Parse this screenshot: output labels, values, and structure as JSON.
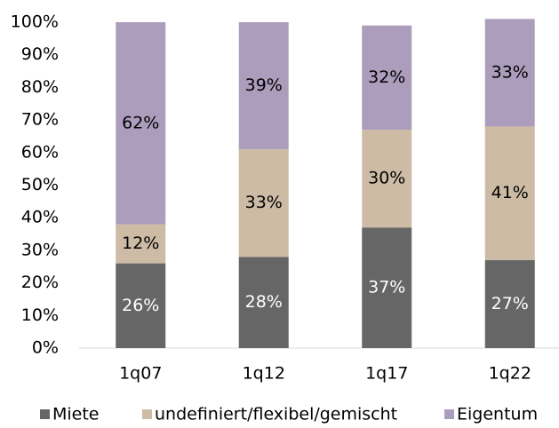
{
  "chart_data": {
    "type": "stacked-bar",
    "categories": [
      "1q07",
      "1q12",
      "1q17",
      "1q22"
    ],
    "series": [
      {
        "name": "Miete",
        "color": "#666666",
        "label_color": "#ffffff",
        "values": [
          26,
          28,
          37,
          27
        ],
        "value_labels": [
          "26%",
          "28%",
          "37%",
          "27%"
        ]
      },
      {
        "name": "undefiniert/flexibel/gemischt",
        "color": "#cdbba6",
        "label_color": "#000000",
        "values": [
          12,
          33,
          30,
          41
        ],
        "value_labels": [
          "12%",
          "33%",
          "30%",
          "41%"
        ]
      },
      {
        "name": "Eigentum",
        "color": "#ad9dbd",
        "label_color": "#000000",
        "values": [
          62,
          39,
          32,
          33
        ],
        "value_labels": [
          "62%",
          "39%",
          "32%",
          "33%"
        ]
      }
    ],
    "ylim": [
      0,
      100
    ],
    "yticks": [
      {
        "value": 0,
        "label": "0%"
      },
      {
        "value": 10,
        "label": "10%"
      },
      {
        "value": 20,
        "label": "20%"
      },
      {
        "value": 30,
        "label": "30%"
      },
      {
        "value": 40,
        "label": "40%"
      },
      {
        "value": 50,
        "label": "50%"
      },
      {
        "value": 60,
        "label": "60%"
      },
      {
        "value": 70,
        "label": "70%"
      },
      {
        "value": 80,
        "label": "80%"
      },
      {
        "value": 90,
        "label": "90%"
      },
      {
        "value": 100,
        "label": "100%"
      }
    ],
    "legend": "bottom"
  }
}
